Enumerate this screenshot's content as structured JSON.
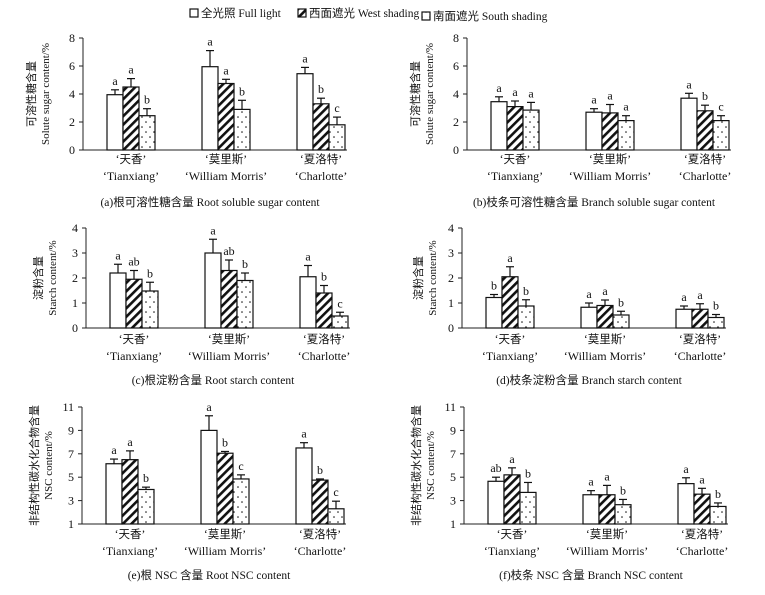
{
  "chart_data": {
    "legend": [
      {
        "name": "全光照 Full light",
        "pattern": "open"
      },
      {
        "name": "西面遮光 West shading",
        "pattern": "hatch"
      },
      {
        "name": "南面遮光 South shading",
        "pattern": "dots"
      }
    ],
    "categories": [
      {
        "cn": "‘天香’",
        "en": "‘Tianxiang’"
      },
      {
        "cn": "‘莫里斯’",
        "en": "‘William Morris’"
      },
      {
        "cn": "‘夏洛特’",
        "en": "‘Charlotte’"
      }
    ],
    "panels": [
      {
        "type": "bar",
        "title": "(a)根可溶性糖含量 Root soluble sugar content",
        "ylabel_cn": "可溶性糖含量",
        "ylabel_en": "Solute sugar content/%",
        "ylim": [
          0,
          8
        ],
        "yticks": [
          0,
          2,
          4,
          6,
          8
        ],
        "values": [
          [
            3.95,
            4.5,
            2.45
          ],
          [
            5.95,
            4.75,
            2.9
          ],
          [
            5.45,
            3.3,
            1.8
          ]
        ],
        "errors": [
          [
            0.35,
            0.6,
            0.5
          ],
          [
            1.15,
            0.3,
            0.65
          ],
          [
            0.45,
            0.4,
            0.55
          ]
        ],
        "letters": [
          [
            "a",
            "a",
            "b"
          ],
          [
            "a",
            "a",
            "b"
          ],
          [
            "a",
            "b",
            "c"
          ]
        ]
      },
      {
        "type": "bar",
        "title": "(b)枝条可溶性糖含量 Branch soluble sugar content",
        "ylabel_cn": "可溶性糖含量",
        "ylabel_en": "Solute sugar content/%",
        "ylim": [
          0,
          8
        ],
        "yticks": [
          0,
          2,
          4,
          6,
          8
        ],
        "values": [
          [
            3.45,
            3.1,
            2.85
          ],
          [
            2.7,
            2.65,
            2.1
          ],
          [
            3.7,
            2.8,
            2.1
          ]
        ],
        "errors": [
          [
            0.35,
            0.4,
            0.55
          ],
          [
            0.25,
            0.6,
            0.35
          ],
          [
            0.35,
            0.4,
            0.35
          ]
        ],
        "letters": [
          [
            "a",
            "a",
            "a"
          ],
          [
            "a",
            "a",
            "a"
          ],
          [
            "a",
            "b",
            "c"
          ]
        ]
      },
      {
        "type": "bar",
        "title": "(c)根淀粉含量 Root starch content",
        "ylabel_cn": "淀粉含量",
        "ylabel_en": "Starch content/%",
        "ylim": [
          0,
          4
        ],
        "yticks": [
          0,
          1,
          2,
          3,
          4
        ],
        "values": [
          [
            2.2,
            1.95,
            1.48
          ],
          [
            3.0,
            2.3,
            1.9
          ],
          [
            2.05,
            1.4,
            0.48
          ]
        ],
        "errors": [
          [
            0.35,
            0.35,
            0.35
          ],
          [
            0.55,
            0.42,
            0.3
          ],
          [
            0.45,
            0.3,
            0.15
          ]
        ],
        "letters": [
          [
            "a",
            "ab",
            "b"
          ],
          [
            "a",
            "ab",
            "b"
          ],
          [
            "a",
            "b",
            "c"
          ]
        ]
      },
      {
        "type": "bar",
        "title": "(d)枝条淀粉含量 Branch starch content",
        "ylabel_cn": "淀粉含量",
        "ylabel_en": "Starch content/%",
        "ylim": [
          0,
          4
        ],
        "yticks": [
          0,
          1,
          2,
          3,
          4
        ],
        "values": [
          [
            1.22,
            2.05,
            0.88
          ],
          [
            0.83,
            0.9,
            0.52
          ],
          [
            0.75,
            0.75,
            0.42
          ]
        ],
        "errors": [
          [
            0.12,
            0.4,
            0.25
          ],
          [
            0.17,
            0.22,
            0.15
          ],
          [
            0.13,
            0.22,
            0.12
          ]
        ],
        "letters": [
          [
            "b",
            "a",
            "b"
          ],
          [
            "a",
            "a",
            "b"
          ],
          [
            "a",
            "a",
            "b"
          ]
        ]
      },
      {
        "type": "bar",
        "title": "(e)根 NSC 含量 Root NSC content",
        "ylabel_cn": "非结构性碳水化合物含量",
        "ylabel_en": "NSC content/%",
        "ylim": [
          1,
          11
        ],
        "yticks": [
          1,
          3,
          5,
          7,
          9,
          11
        ],
        "values": [
          [
            6.15,
            6.5,
            3.95
          ],
          [
            9.0,
            7.05,
            4.85
          ],
          [
            7.5,
            4.75,
            2.3
          ]
        ],
        "errors": [
          [
            0.4,
            0.75,
            0.2
          ],
          [
            1.25,
            0.15,
            0.35
          ],
          [
            0.45,
            0.1,
            0.65
          ]
        ],
        "letters": [
          [
            "a",
            "a",
            "b"
          ],
          [
            "a",
            "b",
            "c"
          ],
          [
            "a",
            "b",
            "c"
          ]
        ]
      },
      {
        "type": "bar",
        "title": "(f)枝条 NSC 含量 Branch NSC content",
        "ylabel_cn": "非结构性碳水化合物含量",
        "ylabel_en": "NSC content/%",
        "ylim": [
          1,
          11
        ],
        "yticks": [
          1,
          3,
          5,
          7,
          9,
          11
        ],
        "values": [
          [
            4.65,
            5.2,
            3.7
          ],
          [
            3.5,
            3.5,
            2.65
          ],
          [
            4.45,
            3.55,
            2.5
          ]
        ],
        "errors": [
          [
            0.35,
            0.6,
            0.85
          ],
          [
            0.35,
            0.8,
            0.45
          ],
          [
            0.5,
            0.5,
            0.3
          ]
        ],
        "letters": [
          [
            "ab",
            "a",
            "b"
          ],
          [
            "a",
            "a",
            "b"
          ],
          [
            "a",
            "a",
            "b"
          ]
        ]
      }
    ]
  }
}
